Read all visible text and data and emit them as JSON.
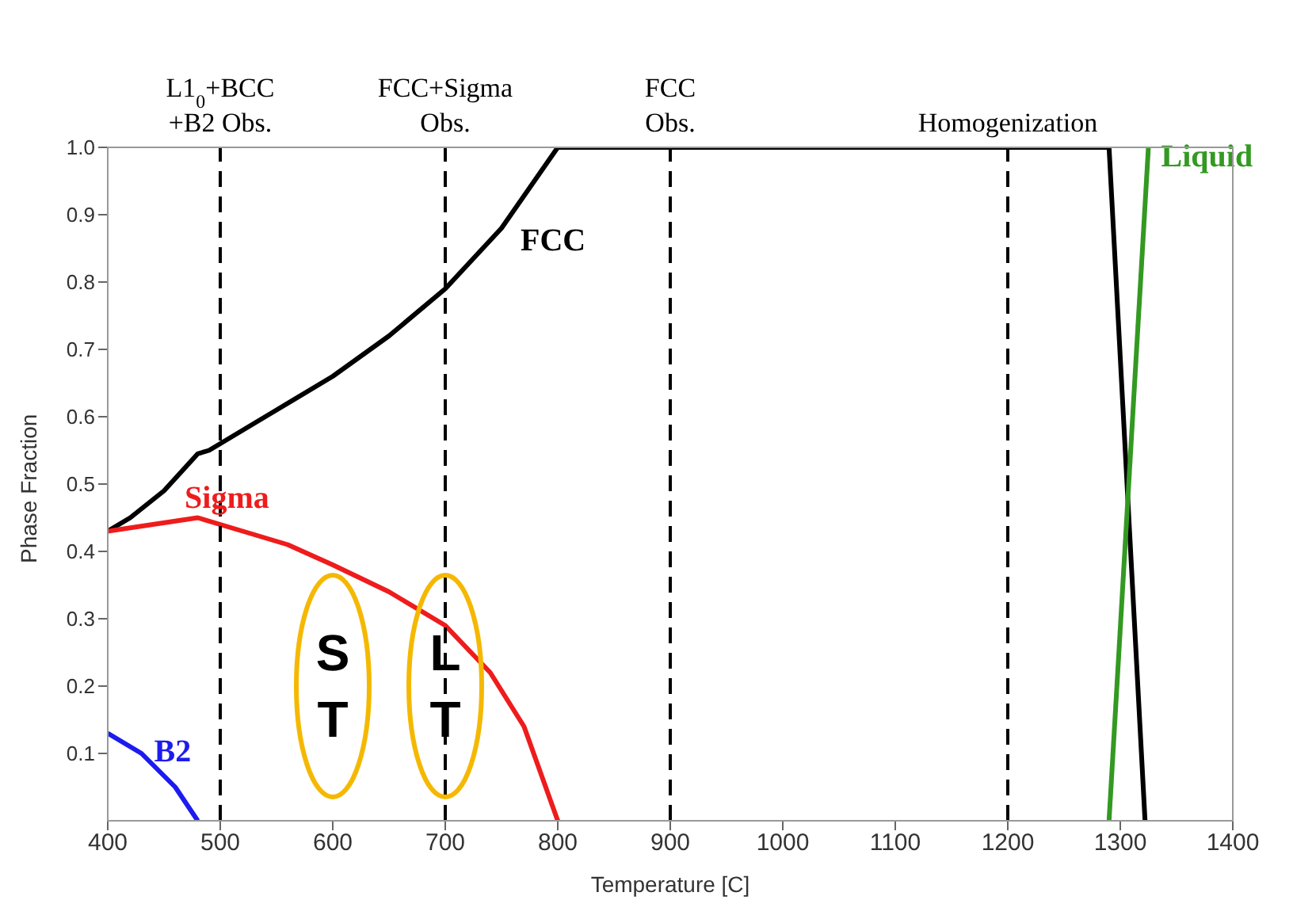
{
  "chart_data": {
    "type": "line",
    "xlabel": "Temperature [C]",
    "ylabel": "Phase Fraction",
    "xlim": [
      400,
      1400
    ],
    "xticks": [
      400,
      500,
      600,
      700,
      800,
      900,
      1000,
      1100,
      1200,
      1300,
      1400
    ],
    "ylim": [
      0,
      1
    ],
    "yticks": [
      0.1,
      0.2,
      0.3,
      0.4,
      0.5,
      0.6,
      0.7,
      0.8,
      0.9,
      {
        "value": 1,
        "label": "1.0"
      }
    ],
    "marker": "none",
    "line_style": "solid",
    "series": [
      {
        "name": "FCC",
        "color": "#000000",
        "x": [
          400,
          420,
          450,
          480,
          490,
          500,
          550,
          600,
          650,
          700,
          750,
          800,
          1290,
          1322
        ],
        "values": [
          0.43,
          0.45,
          0.49,
          0.545,
          0.55,
          0.56,
          0.61,
          0.66,
          0.72,
          0.79,
          0.88,
          1.0,
          1.0,
          0
        ]
      },
      {
        "name": "Sigma",
        "color": "#ee1c1c",
        "x": [
          400,
          440,
          480,
          520,
          560,
          600,
          650,
          700,
          740,
          770,
          800
        ],
        "values": [
          0.43,
          0.44,
          0.45,
          0.43,
          0.41,
          0.38,
          0.34,
          0.29,
          0.22,
          0.14,
          0
        ]
      },
      {
        "name": "B2",
        "color": "#1c1cee",
        "x": [
          400,
          430,
          460,
          480
        ],
        "values": [
          0.13,
          0.1,
          0.05,
          0
        ]
      },
      {
        "name": "Liquid",
        "color": "#339922",
        "x": [
          1290,
          1325
        ],
        "values": [
          0,
          1.0
        ]
      }
    ],
    "ref_lines": [
      {
        "axis": "x",
        "value": 500,
        "label": "L1$_{0}$+BCC\n+B2 Obs.",
        "line_style": "dashed",
        "color": "#000000"
      },
      {
        "axis": "x",
        "value": 700,
        "label": "FCC+Sigma\nObs.",
        "line_style": "dashed",
        "color": "#000000"
      },
      {
        "axis": "x",
        "value": 900,
        "label": "FCC\nObs.",
        "line_style": "dashed",
        "color": "#000000"
      },
      {
        "axis": "x",
        "value": 1200,
        "label": "Homogenization",
        "line_style": "dashed",
        "color": "#000000"
      }
    ],
    "annotations": [
      "S\nT",
      "L\nT"
    ]
  }
}
